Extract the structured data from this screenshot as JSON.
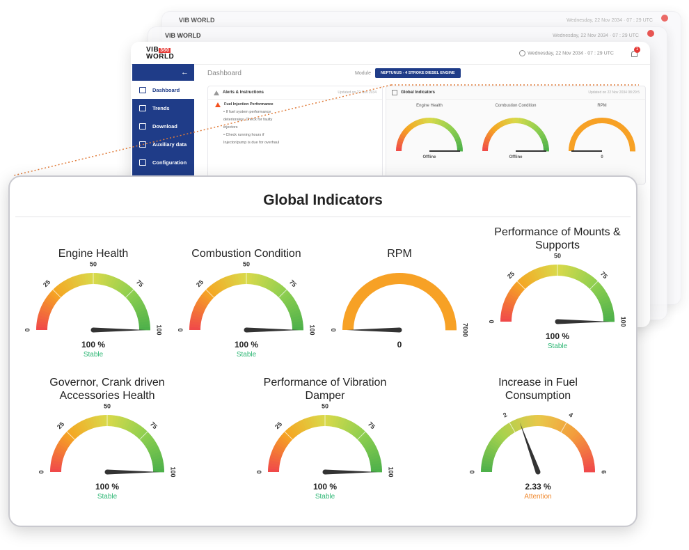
{
  "background_layers": {
    "logo": "VIB WORLD",
    "datetime": "Wednesday, 22 Nov 2034 · 07 : 29 UTC"
  },
  "dashboard": {
    "logo_top": "VIB",
    "logo_badge": "360",
    "logo_bottom": "WORLD",
    "datetime": "Wednesday, 22 Nov 2034 · 07 : 29 UTC",
    "notification_count": "1",
    "back_icon": "arrow-left-icon",
    "page_title": "Dashboard",
    "module_label": "Module",
    "module_value": "NEPTUNUS - 4 STROKE DIESEL ENGINE",
    "sidebar": [
      {
        "label": "Dashboard",
        "icon": "dashboard-icon",
        "active": true
      },
      {
        "label": "Trends",
        "icon": "trend-icon",
        "active": false
      },
      {
        "label": "Download",
        "icon": "download-icon",
        "active": false
      },
      {
        "label": "Auxiliary data",
        "icon": "database-icon",
        "active": false
      },
      {
        "label": "Configuration",
        "icon": "gear-icon",
        "active": false
      }
    ],
    "alerts": {
      "title": "Alerts & Instructions",
      "updated": "Updated on 22 Nov 2034",
      "item_title": "Fuel Injection Performance",
      "lines": [
        "• If fuel system performance",
        "deteriorates: Check for faulty",
        "injectors",
        "• Check running hours if",
        "Injector/pump is due for overhaul"
      ]
    },
    "mini_indicators": {
      "title": "Global Indicators",
      "updated": "Updated on 22 Nov 2034 08:29:5",
      "gauges": [
        {
          "label": "Engine Health",
          "status": "Offline"
        },
        {
          "label": "Combustion Condition",
          "status": "Offline"
        },
        {
          "label": "RPM",
          "status": "0"
        }
      ]
    }
  },
  "overlay": {
    "title": "Global Indicators",
    "gauges": [
      {
        "title": [
          "Engine Health"
        ],
        "ticks": [
          "0",
          "25",
          "50",
          "75",
          "100"
        ],
        "value": 100,
        "value_text": "100 %",
        "status": "Stable",
        "status_color": "#2bb673",
        "scheme": "health",
        "max": 100
      },
      {
        "title": [
          "Combustion Condition"
        ],
        "ticks": [
          "0",
          "25",
          "50",
          "75",
          "100"
        ],
        "value": 100,
        "value_text": "100 %",
        "status": "Stable",
        "status_color": "#2bb673",
        "scheme": "health",
        "max": 100
      },
      {
        "title": [
          "RPM"
        ],
        "ticks": [
          "0",
          "7000"
        ],
        "value": 0,
        "value_text": "0",
        "status": "",
        "status_color": "#2bb673",
        "scheme": "rpm",
        "max": 7000
      },
      {
        "title": [
          "Performance of Mounts &",
          "Supports"
        ],
        "ticks": [
          "0",
          "25",
          "50",
          "75",
          "100"
        ],
        "value": 100,
        "value_text": "100 %",
        "status": "Stable",
        "status_color": "#2bb673",
        "scheme": "health",
        "max": 100
      },
      {
        "title": [
          "Governor, Crank driven",
          "Accessories Health"
        ],
        "ticks": [
          "0",
          "25",
          "50",
          "75",
          "100"
        ],
        "value": 100,
        "value_text": "100 %",
        "status": "Stable",
        "status_color": "#2bb673",
        "scheme": "health",
        "max": 100
      },
      {
        "title": [
          "Performance of Vibration",
          "Damper"
        ],
        "ticks": [
          "0",
          "25",
          "50",
          "75",
          "100"
        ],
        "value": 100,
        "value_text": "100 %",
        "status": "Stable",
        "status_color": "#2bb673",
        "scheme": "health",
        "max": 100
      },
      {
        "title": [
          "Increase in Fuel",
          "Consumption"
        ],
        "ticks": [
          "0",
          "2",
          "4",
          "6"
        ],
        "value": 2.33,
        "value_text": "2.33 %",
        "status": "Attention",
        "status_color": "#f0892f",
        "scheme": "fuel",
        "max": 6
      }
    ]
  }
}
